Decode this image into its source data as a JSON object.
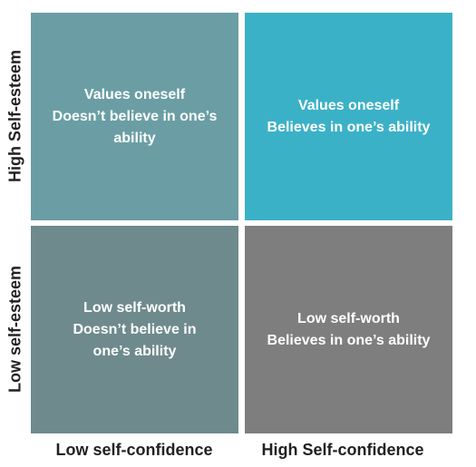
{
  "quadrants": {
    "top_left": {
      "lines": [
        "Values oneself",
        "Doesn’t believe in one’s",
        "ability"
      ],
      "color": "#6a9ea4"
    },
    "top_right": {
      "lines": [
        "Values oneself",
        "Believes in one’s ability"
      ],
      "color": "#3bb1c7"
    },
    "bottom_left": {
      "lines": [
        "Low self-worth",
        "Doesn’t believe in",
        "one’s ability"
      ],
      "color": "#6e8a8c"
    },
    "bottom_right": {
      "lines": [
        "Low self-worth",
        "Believes in one’s ability"
      ],
      "color": "#7e7e7e"
    }
  },
  "y_axis": {
    "high_label": "High Self-esteem",
    "low_label": "Low self-esteem"
  },
  "x_axis": {
    "low_label": "Low self-confidence",
    "high_label": "High Self-confidence"
  }
}
